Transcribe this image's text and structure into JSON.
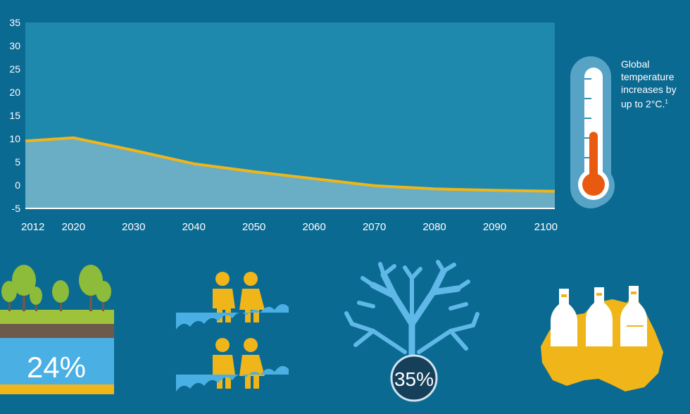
{
  "chart_data": {
    "type": "area",
    "x": [
      2012,
      2020,
      2030,
      2040,
      2050,
      2060,
      2070,
      2080,
      2090,
      2100
    ],
    "y": [
      9.5,
      10.2,
      7.5,
      4.6,
      2.9,
      1.4,
      -0.1,
      -0.8,
      -1.1,
      -1.3
    ],
    "xticks": [
      "2012",
      "2020",
      "2030",
      "2040",
      "2050",
      "2060",
      "2070",
      "2080",
      "2090",
      "2100"
    ],
    "yticks": [
      "35",
      "30",
      "25",
      "20",
      "15",
      "10",
      "5",
      "0",
      "-5"
    ],
    "ylim": [
      -5,
      35
    ],
    "xlim": [
      2012,
      2100
    ],
    "title": "",
    "xlabel": "",
    "ylabel": "",
    "grid": false,
    "colors": {
      "line": "#f0b518",
      "area": "#6aaec6",
      "plot_bg": "#1f88ad"
    }
  },
  "thermometer": {
    "text_line1": "Global",
    "text_line2": "temperature",
    "text_line3": "increases by",
    "text_line4": "up to 2°C.",
    "footnote": "1",
    "fill_level_fraction": 0.45,
    "mercury_color": "#e85a10"
  },
  "infographics": {
    "forest": {
      "value": "24%",
      "icon": "trees-soil-icon"
    },
    "flood": {
      "icon": "people-flood-icon"
    },
    "coral": {
      "value": "35%",
      "icon": "coral-icon"
    },
    "australia": {
      "icon": "australia-map-bottles-icon"
    }
  },
  "colors": {
    "background": "#0b6a92",
    "accent_yellow": "#f0b518",
    "accent_light_blue": "#4ab0e4",
    "white": "#ffffff"
  }
}
